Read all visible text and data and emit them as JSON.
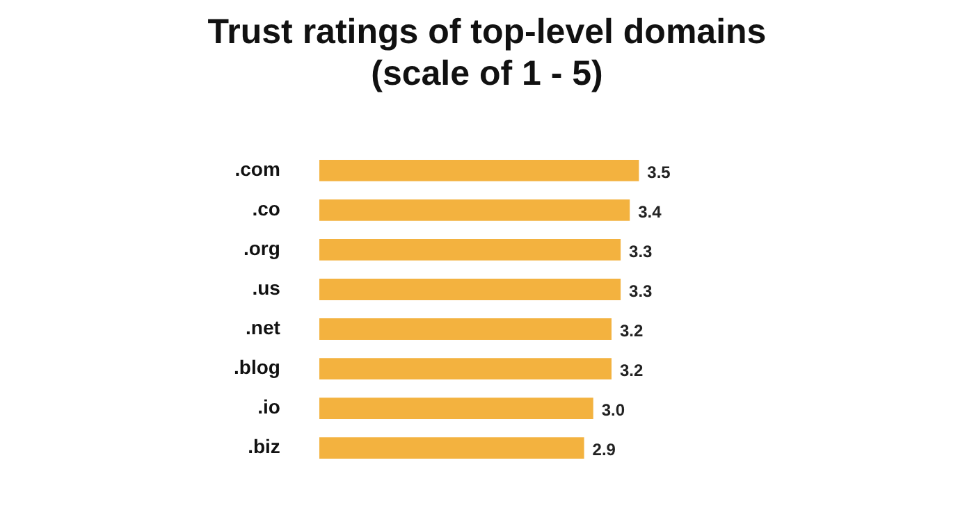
{
  "chart_data": {
    "type": "bar",
    "orientation": "horizontal",
    "title": "Trust ratings of top-level domains (scale of 1 - 5)",
    "categories": [
      ".com",
      ".co",
      ".org",
      ".us",
      ".net",
      ".blog",
      ".io",
      ".biz"
    ],
    "values": [
      3.5,
      3.4,
      3.3,
      3.3,
      3.2,
      3.2,
      3.0,
      2.9
    ],
    "value_labels": [
      "3.5",
      "3.4",
      "3.3",
      "3.3",
      "3.2",
      "3.2",
      "3.0",
      "2.9"
    ],
    "color": "#f3b23f",
    "tick_labels": "y",
    "legend": false
  }
}
